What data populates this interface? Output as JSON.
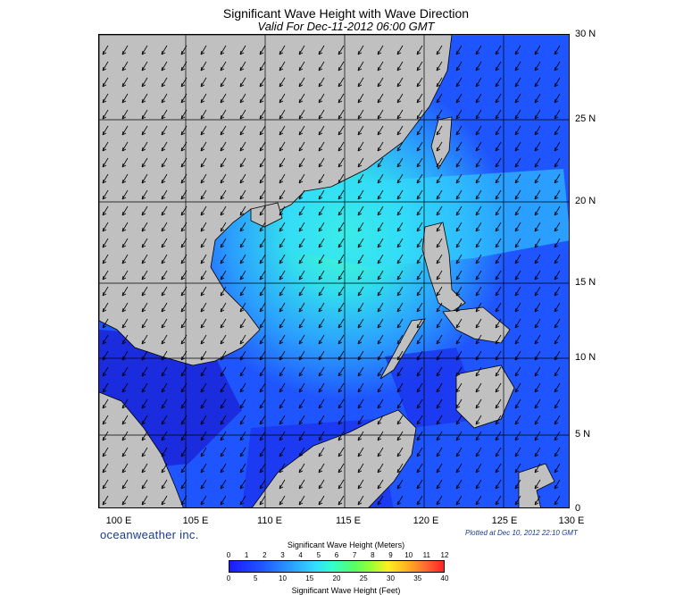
{
  "title": "Significant Wave Height with Wave Direction",
  "subtitle": "Valid For Dec-11-2012 06:00 GMT",
  "lat_labels": [
    "30 N",
    "25 N",
    "20 N",
    "15 N",
    "10 N",
    "5 N",
    "0"
  ],
  "lon_labels": [
    "100 E",
    "105 E",
    "110 E",
    "115 E",
    "120 E",
    "125 E",
    "130 E"
  ],
  "brand": "oceanweather inc.",
  "plotted": "Plotted at Dec 10, 2012 22:10 GMT",
  "colorbar": {
    "meters_label": "Significant Wave Height (Meters)",
    "feet_label": "Significant Wave Height (Feet)",
    "meters_ticks": [
      "0",
      "1",
      "2",
      "3",
      "4",
      "5",
      "6",
      "7",
      "8",
      "9",
      "10",
      "11",
      "12"
    ],
    "feet_ticks": [
      "0",
      "5",
      "10",
      "15",
      "20",
      "25",
      "30",
      "35",
      "40"
    ]
  },
  "colors": {
    "land": "#c0c0c0",
    "sea_low": "#1a3cff",
    "sea_mid": "#2a9cff",
    "sea_high": "#33ffee"
  }
}
